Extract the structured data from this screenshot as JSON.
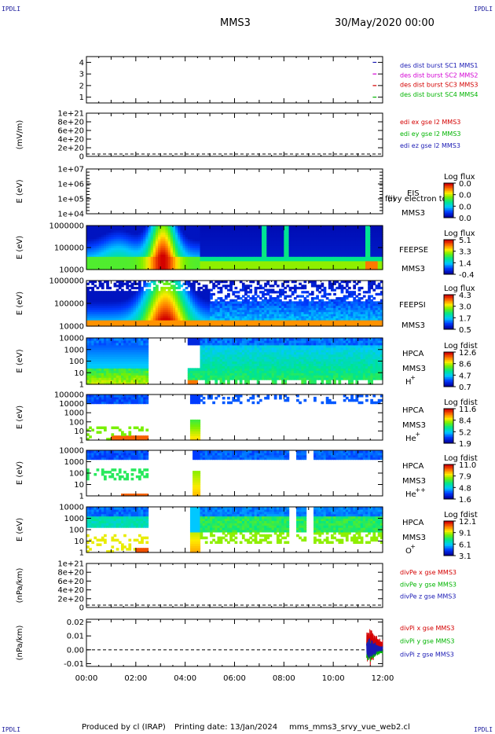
{
  "header": {
    "spacecraft": "MMS3",
    "datetime": "30/May/2020 00:00",
    "corner_label": "IPDLI"
  },
  "footer": {
    "produced_by": "Produced by cl (IRAP)",
    "printing_date": "Printing date: 13/Jan/2024",
    "file_name": "mms_mms3_srvy_vue_web2.cl"
  },
  "time_axis": {
    "ticks": [
      "00:00",
      "02:00",
      "04:00",
      "06:00",
      "08:00",
      "10:00",
      "12:00"
    ]
  },
  "chart_data": [
    {
      "id": "des",
      "type": "line",
      "ylim": [
        0.5,
        4.5
      ],
      "yticks": [
        "1",
        "2",
        "3",
        "4"
      ],
      "series": [
        {
          "name": "des dist burst SC1 MMS1",
          "color": "#1a1ab4",
          "y": 4
        },
        {
          "name": "des dist burst SC2 MMS2",
          "color": "#d400d4",
          "y": 3
        },
        {
          "name": "des dist burst SC3 MMS3",
          "color": "#d40000",
          "y": 2
        },
        {
          "name": "des dist burst SC4 MMS4",
          "color": "#00b400",
          "y": 1
        }
      ],
      "segments": [
        [
          11.6,
          11.75
        ]
      ]
    },
    {
      "id": "edi",
      "type": "line",
      "ylabel": "(mV/m)",
      "yticks": [
        "1e+21",
        "8e+20",
        "6e+20",
        "4e+20",
        "2e+20",
        "0"
      ],
      "series": [
        {
          "name": "edi ex gse l2 MMS3",
          "color": "#d40000"
        },
        {
          "name": "edi ey gse l2 MMS3",
          "color": "#00b400"
        },
        {
          "name": "edi ez gse l2 MMS3",
          "color": "#1a1ab4"
        }
      ]
    },
    {
      "id": "eis",
      "type": "heatmap",
      "ylabel": "E (eV)",
      "yticks": [
        "1e+07",
        "1e+06",
        "1e+05",
        "1e+04"
      ],
      "labels": [
        "EIS",
        "MMS3"
      ],
      "overlay_text": "(i)",
      "cbar_title": "Log flux",
      "cbar_ticks": [
        "0.0",
        "0.0",
        "0.0",
        "0.0"
      ],
      "stub_label": "fevy electron td"
    },
    {
      "id": "feepse",
      "type": "heatmap",
      "ylabel": "E (eV)",
      "yticks": [
        "1000000",
        "100000",
        "10000"
      ],
      "labels": [
        "FEEPSE",
        "MMS3"
      ],
      "cbar_title": "Log flux",
      "cbar_ticks": [
        "5.1",
        "3.3",
        "1.4",
        "-0.4"
      ]
    },
    {
      "id": "feepsi",
      "type": "heatmap",
      "ylabel": "E (eV)",
      "yticks": [
        "1000000",
        "100000",
        "10000"
      ],
      "labels": [
        "FEEPSI",
        "MMS3"
      ],
      "cbar_title": "Log flux",
      "cbar_ticks": [
        "4.3",
        "3.0",
        "1.7",
        "0.5"
      ]
    },
    {
      "id": "hpca_h",
      "type": "heatmap",
      "ylabel": "E (eV)",
      "yticks": [
        "10000",
        "1000",
        "100",
        "10",
        "1"
      ],
      "labels": [
        "HPCA",
        "MMS3",
        "H",
        "+"
      ],
      "cbar_title": "Log fdist",
      "cbar_ticks": [
        "12.6",
        "8.6",
        "4.7",
        "0.7"
      ]
    },
    {
      "id": "hpca_he",
      "type": "heatmap",
      "ylabel": "E (eV)",
      "yticks": [
        "100000",
        "10000",
        "1000",
        "100",
        "10",
        "1"
      ],
      "labels": [
        "HPCA",
        "MMS3",
        "He",
        "+"
      ],
      "cbar_title": "Log fdist",
      "cbar_ticks": [
        "11.6",
        "8.4",
        "5.2",
        "1.9"
      ]
    },
    {
      "id": "hpca_hepp",
      "type": "heatmap",
      "ylabel": "E (eV)",
      "yticks": [
        "10000",
        "1000",
        "100",
        "10",
        "1"
      ],
      "labels": [
        "HPCA",
        "MMS3",
        "He",
        "++"
      ],
      "cbar_title": "Log fdist",
      "cbar_ticks": [
        "11.0",
        "7.9",
        "4.8",
        "1.6"
      ]
    },
    {
      "id": "hpca_o",
      "type": "heatmap",
      "ylabel": "E (eV)",
      "yticks": [
        "10000",
        "1000",
        "100",
        "10",
        "1"
      ],
      "labels": [
        "HPCA",
        "MMS3",
        "O",
        "+"
      ],
      "cbar_title": "Log fdist",
      "cbar_ticks": [
        "12.1",
        "9.1",
        "6.1",
        "3.1"
      ]
    },
    {
      "id": "divpe",
      "type": "line",
      "ylabel": "(nPa/km)",
      "yticks": [
        "1e+21",
        "8e+20",
        "6e+20",
        "4e+20",
        "2e+20",
        "0"
      ],
      "series": [
        {
          "name": "divPe x gse MMS3",
          "color": "#d40000"
        },
        {
          "name": "divPe y gse MMS3",
          "color": "#00b400"
        },
        {
          "name": "divPe z gse MMS3",
          "color": "#1a1ab4"
        }
      ]
    },
    {
      "id": "divpi",
      "type": "line",
      "ylabel": "(nPa/km)",
      "ylim": [
        -0.012,
        0.022
      ],
      "yticks": [
        "0.02",
        "0.01",
        "0.00",
        "-0.01"
      ],
      "ytick_values": [
        0.02,
        0.01,
        0.0,
        -0.01
      ],
      "series": [
        {
          "name": "divPi x gse MMS3",
          "color": "#d40000"
        },
        {
          "name": "divPi y gse MMS3",
          "color": "#00b400"
        },
        {
          "name": "divPi z gse MMS3",
          "color": "#1a1ab4"
        }
      ],
      "burst_interval": [
        11.35,
        12.0
      ]
    }
  ]
}
